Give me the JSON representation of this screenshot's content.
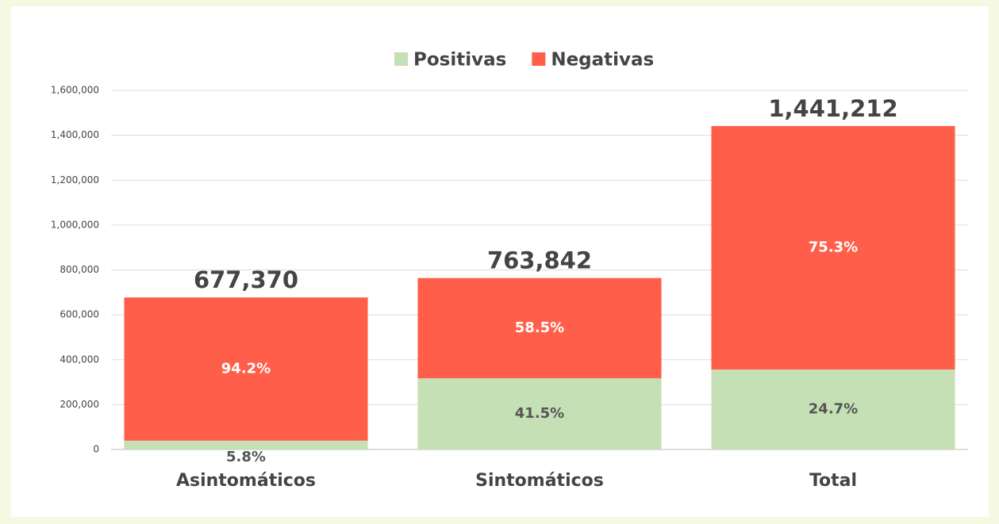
{
  "chart_data": {
    "type": "stacked-bar",
    "categories": [
      "Asintomáticos",
      "Sintomáticos",
      "Total"
    ],
    "series": [
      {
        "name": "Positivas",
        "color": "#c5e0b4",
        "values": [
          39287,
          316994,
          356281
        ],
        "value_labels": [
          "5.8%",
          "41.5%",
          "24.7%"
        ]
      },
      {
        "name": "Negativas",
        "color": "#ff5f4a",
        "values": [
          638083,
          446848,
          1084931
        ],
        "value_labels": [
          "94.2%",
          "58.5%",
          "75.3%"
        ]
      }
    ],
    "totals": [
      {
        "value": 677370,
        "label": "677,370"
      },
      {
        "value": 763842,
        "label": "763,842"
      },
      {
        "value": 1441212,
        "label": "1,441,212"
      }
    ],
    "ylim": [
      0,
      1600000
    ],
    "yticks": [
      0,
      {
        "value": 200000,
        "label": "200,000"
      },
      {
        "value": 400000,
        "label": "400,000"
      },
      {
        "value": 600000,
        "label": "600,000"
      },
      {
        "value": 800000,
        "label": "800,000"
      },
      {
        "value": 1000000,
        "label": "1,000,000"
      },
      {
        "value": 1200000,
        "label": "1,200,000"
      },
      {
        "value": 1400000,
        "label": "1,400,000"
      },
      {
        "value": 1600000,
        "label": "1,600,000"
      }
    ],
    "grid": true
  }
}
